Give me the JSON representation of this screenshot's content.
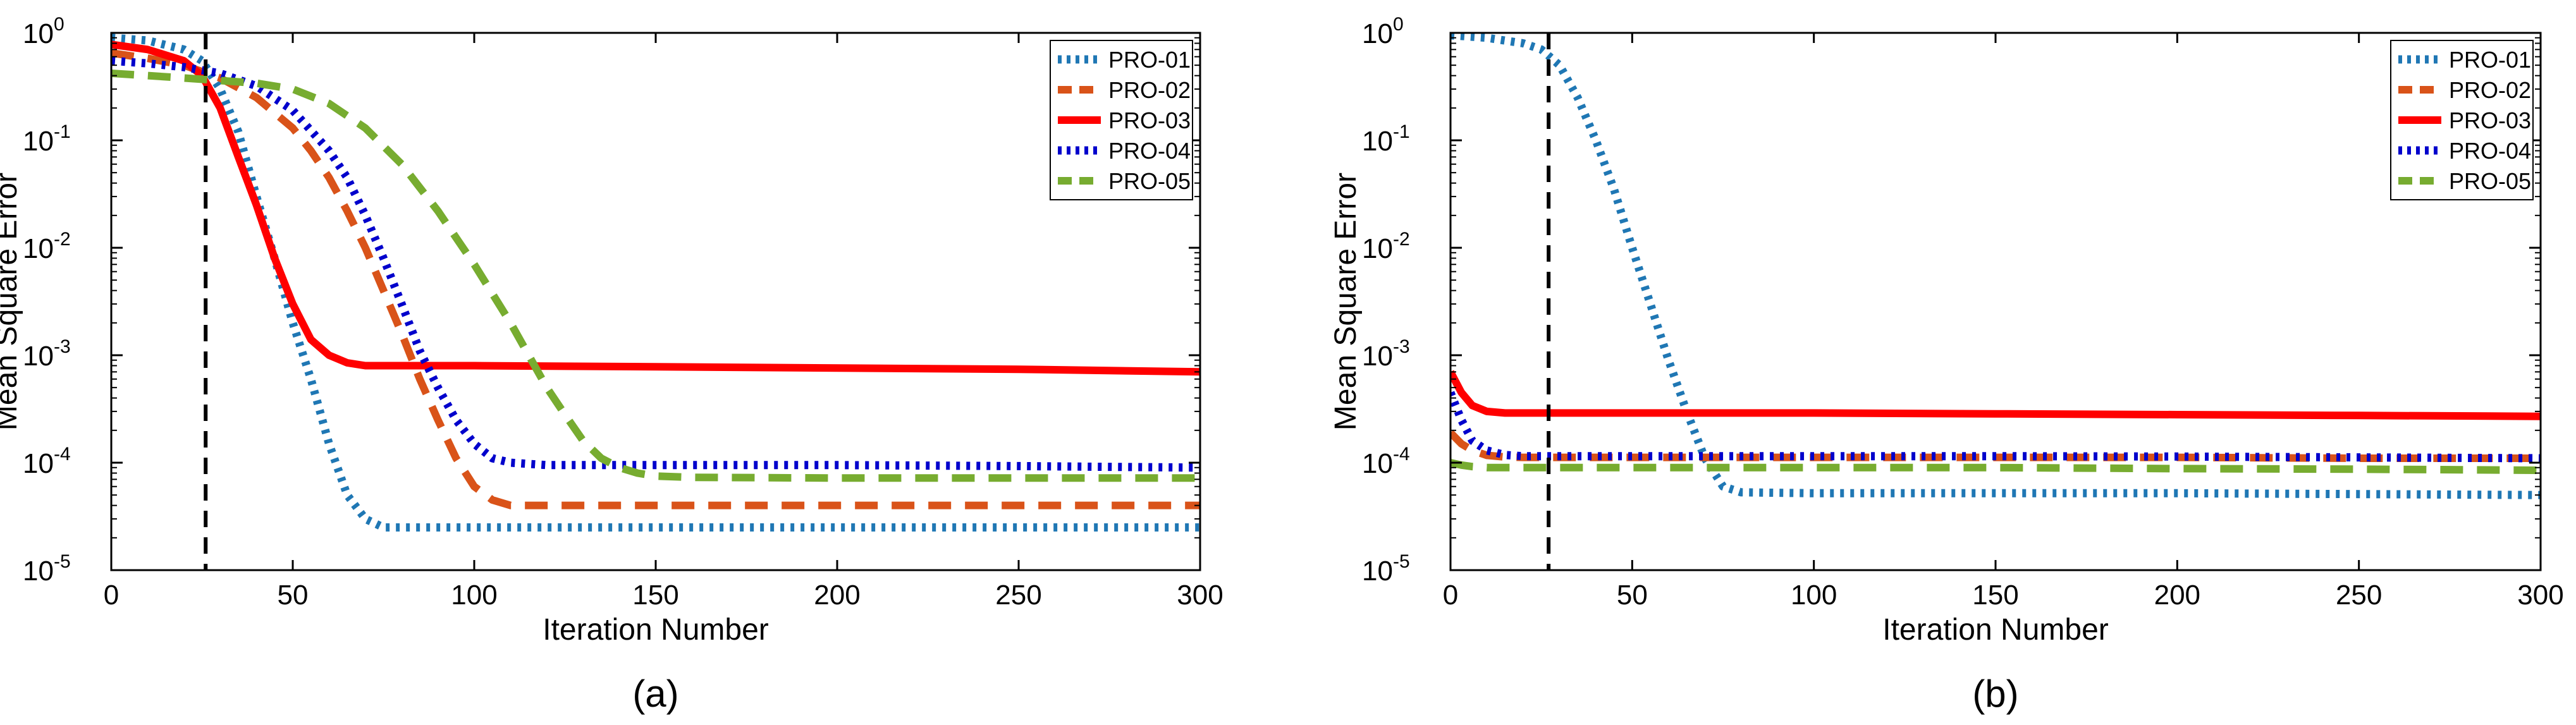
{
  "chart_data": [
    {
      "type": "line",
      "panel_label": "(a)",
      "xlabel": "Iteration Number",
      "ylabel": "Mean Square Error",
      "xlim": [
        0,
        300
      ],
      "ylim": [
        1e-05,
        1
      ],
      "yscale": "log",
      "xticks": [
        0,
        50,
        100,
        150,
        200,
        250,
        300
      ],
      "yticks": [
        {
          "mant": "10",
          "exp": "-5",
          "value": 1e-05
        },
        {
          "mant": "10",
          "exp": "-4",
          "value": 0.0001
        },
        {
          "mant": "10",
          "exp": "-3",
          "value": 0.001
        },
        {
          "mant": "10",
          "exp": "-2",
          "value": 0.01
        },
        {
          "mant": "10",
          "exp": "-1",
          "value": 0.1
        },
        {
          "mant": "10",
          "exp": "0",
          "value": 1
        }
      ],
      "vline_x": 26,
      "legend_position": "top-right",
      "series": [
        {
          "name": "PRO-01",
          "color": "#1F77B4",
          "dash": "dot",
          "x": [
            0,
            10,
            20,
            25,
            30,
            35,
            40,
            45,
            50,
            55,
            60,
            65,
            70,
            75,
            80,
            100,
            150,
            200,
            250,
            300
          ],
          "y": [
            0.9,
            0.85,
            0.7,
            0.55,
            0.3,
            0.12,
            0.03,
            0.008,
            0.002,
            0.0006,
            0.00015,
            5e-05,
            3e-05,
            2.5e-05,
            2.5e-05,
            2.5e-05,
            2.5e-05,
            2.5e-05,
            2.5e-05,
            2.5e-05
          ]
        },
        {
          "name": "PRO-02",
          "color": "#D95319",
          "dash": "dash",
          "x": [
            0,
            10,
            20,
            30,
            40,
            50,
            55,
            60,
            65,
            70,
            75,
            80,
            85,
            90,
            95,
            100,
            105,
            110,
            115,
            120,
            150,
            200,
            250,
            300
          ],
          "y": [
            0.65,
            0.58,
            0.5,
            0.38,
            0.25,
            0.13,
            0.08,
            0.045,
            0.022,
            0.01,
            0.004,
            0.0016,
            0.0006,
            0.00025,
            0.00011,
            6e-05,
            4.5e-05,
            4e-05,
            4e-05,
            4e-05,
            4e-05,
            4e-05,
            4e-05,
            4e-05
          ]
        },
        {
          "name": "PRO-03",
          "color": "#FF0000",
          "dash": "solid",
          "x": [
            0,
            10,
            20,
            25,
            30,
            35,
            40,
            45,
            50,
            55,
            60,
            65,
            70,
            75,
            80,
            100,
            150,
            200,
            250,
            300
          ],
          "y": [
            0.78,
            0.7,
            0.55,
            0.4,
            0.2,
            0.07,
            0.025,
            0.008,
            0.003,
            0.0014,
            0.001,
            0.00085,
            0.0008,
            0.0008,
            0.0008,
            0.0008,
            0.00078,
            0.00076,
            0.00074,
            0.0007
          ]
        },
        {
          "name": "PRO-04",
          "color": "#0000CC",
          "dash": "dot",
          "x": [
            0,
            10,
            20,
            30,
            40,
            50,
            60,
            65,
            70,
            75,
            80,
            85,
            90,
            95,
            100,
            105,
            110,
            120,
            150,
            200,
            250,
            300
          ],
          "y": [
            0.55,
            0.52,
            0.48,
            0.42,
            0.32,
            0.19,
            0.08,
            0.045,
            0.02,
            0.008,
            0.003,
            0.0011,
            0.0005,
            0.00025,
            0.00015,
            0.00011,
            0.0001,
            9.5e-05,
            9.5e-05,
            9.5e-05,
            9.3e-05,
            9e-05
          ]
        },
        {
          "name": "PRO-05",
          "color": "#77AC30",
          "dash": "dash",
          "x": [
            0,
            10,
            20,
            30,
            40,
            50,
            60,
            70,
            80,
            90,
            100,
            110,
            115,
            120,
            125,
            130,
            135,
            140,
            145,
            150,
            160,
            200,
            250,
            300
          ],
          "y": [
            0.42,
            0.4,
            0.38,
            0.36,
            0.34,
            0.3,
            0.22,
            0.13,
            0.06,
            0.022,
            0.007,
            0.002,
            0.001,
            0.0005,
            0.00028,
            0.00016,
            0.00011,
            9e-05,
            8e-05,
            7.5e-05,
            7.3e-05,
            7.2e-05,
            7.2e-05,
            7.2e-05
          ]
        }
      ]
    },
    {
      "type": "line",
      "panel_label": "(b)",
      "xlabel": "Iteration Number",
      "ylabel": "Mean Square Error",
      "xlim": [
        0,
        300
      ],
      "ylim": [
        1e-05,
        1
      ],
      "yscale": "log",
      "xticks": [
        0,
        50,
        100,
        150,
        200,
        250,
        300
      ],
      "yticks": [
        {
          "mant": "10",
          "exp": "-5",
          "value": 1e-05
        },
        {
          "mant": "10",
          "exp": "-4",
          "value": 0.0001
        },
        {
          "mant": "10",
          "exp": "-3",
          "value": 0.001
        },
        {
          "mant": "10",
          "exp": "-2",
          "value": 0.01
        },
        {
          "mant": "10",
          "exp": "-1",
          "value": 0.1
        },
        {
          "mant": "10",
          "exp": "0",
          "value": 1
        }
      ],
      "vline_x": 27,
      "legend_position": "top-right",
      "series": [
        {
          "name": "PRO-01",
          "color": "#1F77B4",
          "dash": "dot",
          "x": [
            0,
            10,
            20,
            25,
            30,
            35,
            40,
            45,
            50,
            55,
            60,
            65,
            70,
            75,
            80,
            100,
            150,
            200,
            250,
            300
          ],
          "y": [
            0.95,
            0.9,
            0.8,
            0.7,
            0.5,
            0.25,
            0.1,
            0.035,
            0.01,
            0.003,
            0.0009,
            0.0003,
            0.00011,
            6e-05,
            5.3e-05,
            5.2e-05,
            5.2e-05,
            5.2e-05,
            5.1e-05,
            5e-05
          ]
        },
        {
          "name": "PRO-02",
          "color": "#D95319",
          "dash": "dash",
          "x": [
            0,
            3,
            6,
            10,
            15,
            20,
            30,
            50,
            100,
            150,
            200,
            250,
            300
          ],
          "y": [
            0.00019,
            0.00015,
            0.00013,
            0.000117,
            0.000113,
            0.000112,
            0.000112,
            0.000112,
            0.000112,
            0.000112,
            0.000112,
            0.00011,
            0.00011
          ]
        },
        {
          "name": "PRO-03",
          "color": "#FF0000",
          "dash": "solid",
          "x": [
            0,
            3,
            6,
            10,
            15,
            20,
            30,
            50,
            100,
            150,
            200,
            250,
            300
          ],
          "y": [
            0.0007,
            0.00045,
            0.00034,
            0.0003,
            0.00029,
            0.00029,
            0.00029,
            0.00029,
            0.00029,
            0.000285,
            0.00028,
            0.000275,
            0.00027
          ]
        },
        {
          "name": "PRO-04",
          "color": "#0000CC",
          "dash": "dot",
          "x": [
            0,
            3,
            6,
            10,
            15,
            20,
            30,
            50,
            100,
            150,
            200,
            250,
            300
          ],
          "y": [
            0.00045,
            0.00025,
            0.00016,
            0.00013,
            0.000118,
            0.000115,
            0.000115,
            0.000115,
            0.000115,
            0.000115,
            0.000114,
            0.000112,
            0.00011
          ]
        },
        {
          "name": "PRO-05",
          "color": "#77AC30",
          "dash": "dash",
          "x": [
            0,
            3,
            6,
            10,
            15,
            20,
            30,
            50,
            100,
            150,
            200,
            250,
            300
          ],
          "y": [
            0.0001,
            9.5e-05,
            9.2e-05,
            9e-05,
            9e-05,
            9e-05,
            9e-05,
            9e-05,
            9e-05,
            9e-05,
            8.8e-05,
            8.7e-05,
            8.5e-05
          ]
        }
      ]
    }
  ]
}
